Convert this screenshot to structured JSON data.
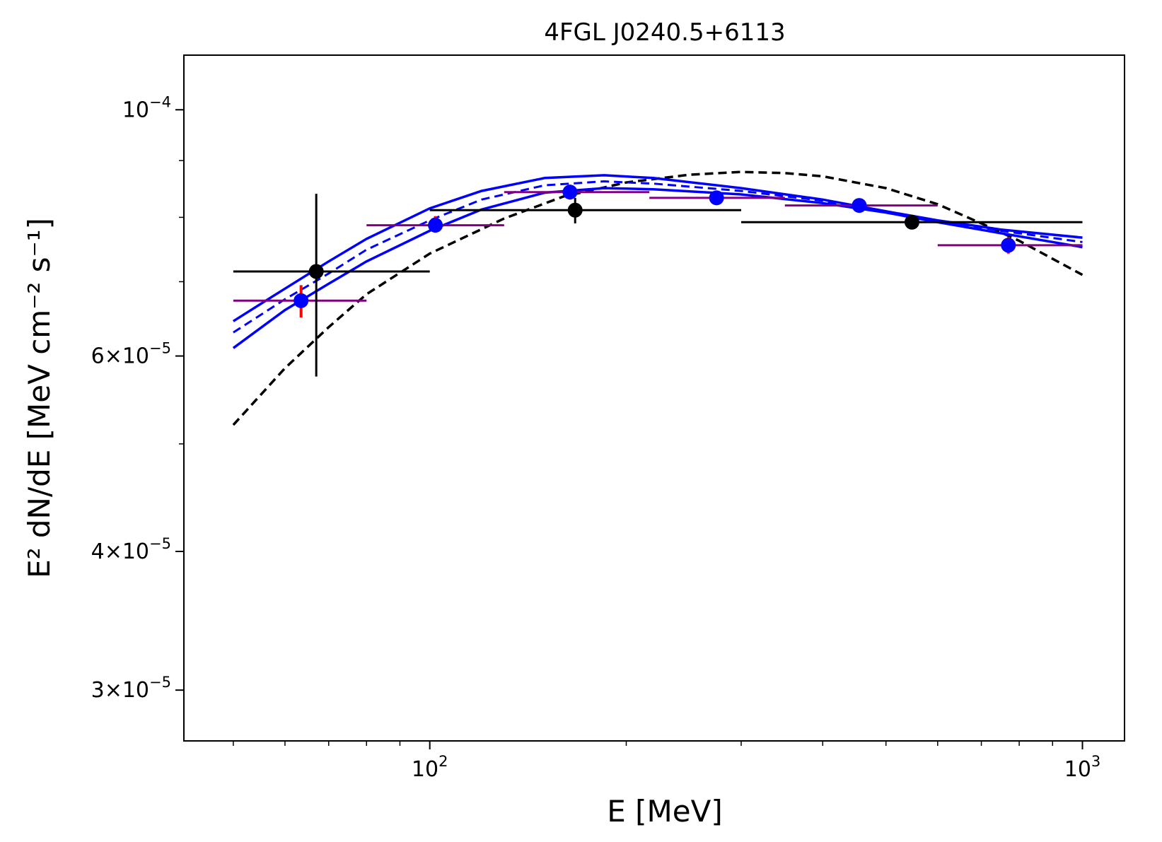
{
  "chart_data": {
    "type": "scatter",
    "title": "4FGL J0240.5+6113",
    "xlabel": "E [MeV]",
    "ylabel": "E² dN/dE [MeV cm⁻² s⁻¹]",
    "xscale": "log",
    "yscale": "log",
    "xlim": [
      42,
      1160
    ],
    "ylim": [
      2.7e-05,
      0.000112
    ],
    "grid": false,
    "x_ticks": [
      {
        "value": 100,
        "base": "10",
        "exp": "2"
      },
      {
        "value": 1000,
        "base": "10",
        "exp": "3"
      }
    ],
    "y_ticks": [
      {
        "value": 0.0001,
        "mant": "",
        "base": "10",
        "exp": "−4"
      },
      {
        "value": 6e-05,
        "mant": "6×",
        "base": "10",
        "exp": "−5"
      },
      {
        "value": 4e-05,
        "mant": "4×",
        "base": "10",
        "exp": "−5"
      },
      {
        "value": 3e-05,
        "mant": "3×",
        "base": "10",
        "exp": "−5"
      }
    ],
    "black_points": {
      "color": "#000000",
      "points": [
        {
          "x": 67,
          "y": 7.15e-05,
          "xlo": 50,
          "xhi": 100,
          "ylo": 5.75e-05,
          "yhi": 8.4e-05
        },
        {
          "x": 167,
          "y": 8.12e-05,
          "xlo": 100,
          "xhi": 300,
          "ylo": 7.9e-05,
          "yhi": 8.33e-05
        },
        {
          "x": 548,
          "y": 7.92e-05,
          "xlo": 300,
          "xhi": 1000,
          "ylo": 7.92e-05,
          "yhi": 7.92e-05
        }
      ]
    },
    "blue_points": {
      "color": "#0000ff",
      "errcolor": "#ff0000",
      "points": [
        {
          "x": 63.5,
          "y": 6.73e-05,
          "xlo": 50,
          "xhi": 80,
          "ylo": 6.5e-05,
          "yhi": 6.95e-05
        },
        {
          "x": 102,
          "y": 7.87e-05,
          "xlo": 80,
          "xhi": 130,
          "ylo": 7.75e-05,
          "yhi": 8.02e-05
        },
        {
          "x": 164,
          "y": 8.43e-05,
          "xlo": 130,
          "xhi": 217,
          "ylo": 8.3e-05,
          "yhi": 8.56e-05
        },
        {
          "x": 275,
          "y": 8.33e-05,
          "xlo": 217,
          "xhi": 350,
          "ylo": 8.28e-05,
          "yhi": 8.38e-05
        },
        {
          "x": 455,
          "y": 8.2e-05,
          "xlo": 350,
          "xhi": 600,
          "ylo": 8.08e-05,
          "yhi": 8.32e-05
        },
        {
          "x": 770,
          "y": 7.55e-05,
          "xlo": 600,
          "xhi": 1000,
          "ylo": 7.42e-05,
          "yhi": 7.68e-05
        }
      ]
    },
    "black_model": {
      "style": "dashed",
      "color": "#000000",
      "x": [
        50,
        60,
        70,
        80,
        100,
        130,
        160,
        200,
        250,
        300,
        350,
        400,
        500,
        600,
        700,
        800,
        1000
      ],
      "y": [
        5.2e-05,
        5.85e-05,
        6.37e-05,
        6.82e-05,
        7.42e-05,
        7.98e-05,
        8.35e-05,
        8.6e-05,
        8.74e-05,
        8.79e-05,
        8.77e-05,
        8.71e-05,
        8.5e-05,
        8.22e-05,
        7.9e-05,
        7.62e-05,
        7.1e-05
      ]
    },
    "blue_model": {
      "color": "#0000ff",
      "x": [
        50,
        60,
        70,
        80,
        100,
        120,
        150,
        185,
        220,
        300,
        400,
        500,
        600,
        750,
        1000
      ],
      "mid": [
        6.3e-05,
        6.75e-05,
        7.12e-05,
        7.48e-05,
        7.95e-05,
        8.3e-05,
        8.55e-05,
        8.62e-05,
        8.58e-05,
        8.45e-05,
        8.28e-05,
        8.1e-05,
        7.95e-05,
        7.78e-05,
        7.6e-05
      ],
      "upper": [
        6.45e-05,
        6.9e-05,
        7.3e-05,
        7.65e-05,
        8.15e-05,
        8.45e-05,
        8.68e-05,
        8.73e-05,
        8.68e-05,
        8.5e-05,
        8.3e-05,
        8.1e-05,
        7.95e-05,
        7.8e-05,
        7.67e-05
      ],
      "lower": [
        6.1e-05,
        6.6e-05,
        6.97e-05,
        7.3e-05,
        7.78e-05,
        8.13e-05,
        8.42e-05,
        8.5e-05,
        8.48e-05,
        8.39e-05,
        8.24e-05,
        8.08e-05,
        7.92e-05,
        7.74e-05,
        7.52e-05
      ]
    }
  }
}
